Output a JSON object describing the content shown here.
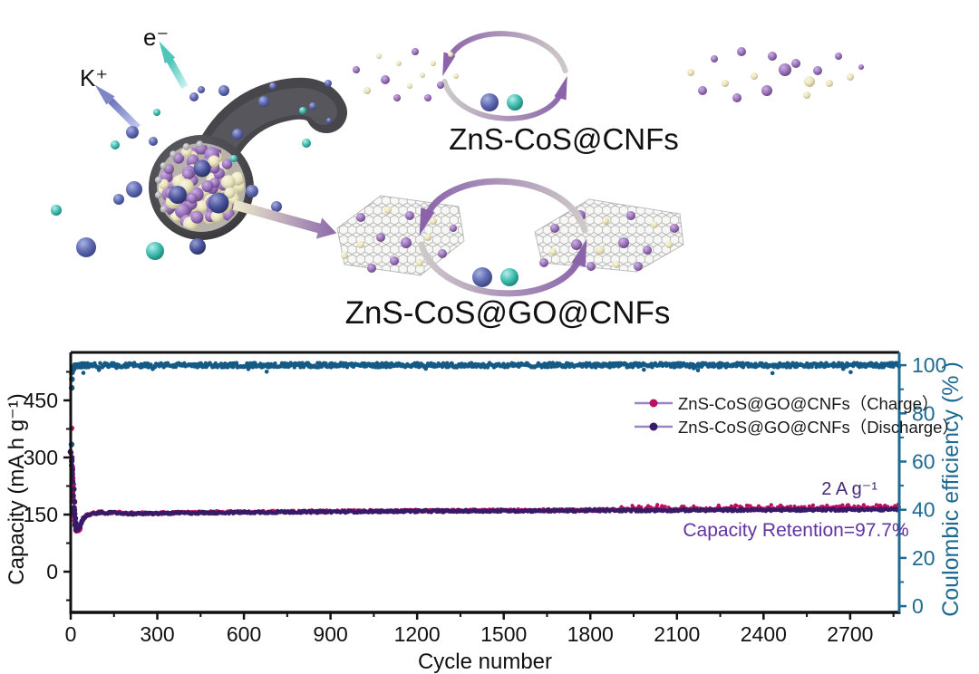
{
  "schematic": {
    "ion_label": "K⁺",
    "electron_label": "e⁻",
    "top_cycle_caption": "ZnS-CoS@CNFs",
    "bottom_cycle_caption": "ZnS-CoS@GO@CNFs"
  },
  "chart_data": {
    "type": "scatter",
    "title": "",
    "xlabel": "Cycle number",
    "ylabel_left": "Capacity (mA h g⁻¹)",
    "ylabel_right": "Coulombic efficiency (% )",
    "x_ticks": [
      0,
      300,
      600,
      900,
      1200,
      1500,
      1800,
      2100,
      2400,
      2700
    ],
    "y_ticks_left": [
      0,
      150,
      300,
      450
    ],
    "y_ticks_right": [
      0,
      20,
      40,
      60,
      80,
      100
    ],
    "xlim": [
      0,
      2870
    ],
    "ylim_left": [
      -107,
      576
    ],
    "ylim_right": [
      -2.6,
      105.3
    ],
    "grid": false,
    "legend_position": "upper right",
    "annotations": {
      "rate": "2 A g⁻¹",
      "retention": "Capacity Retention=97.7%"
    },
    "legend": [
      {
        "label": "ZnS-CoS@GO@CNFs（Charge）",
        "series": "charge"
      },
      {
        "label": "ZnS-CoS@GO@CNFs（Discharge）",
        "series": "discharge"
      }
    ],
    "series": [
      {
        "name": "charge",
        "axis": "left",
        "marker": "circle",
        "anchors_x": [
          1,
          2,
          3,
          4,
          6,
          8,
          10,
          12,
          15,
          18,
          22,
          28,
          35,
          45,
          60,
          100,
          160,
          220,
          300,
          500,
          800,
          1200,
          1600,
          2000,
          2400,
          2700,
          2870
        ],
        "anchors_y": [
          375,
          312,
          292,
          276,
          258,
          230,
          194,
          166,
          134,
          112,
          107,
          112,
          124,
          139,
          151,
          156,
          155,
          153,
          154,
          156,
          158,
          160,
          161,
          163,
          164,
          166,
          166
        ],
        "noise": 3.2,
        "late_extra": {
          "from": 1900,
          "amp": 26
        }
      },
      {
        "name": "discharge",
        "axis": "left",
        "marker": "circle",
        "anchors_x": [
          1,
          2,
          3,
          4,
          6,
          8,
          10,
          12,
          15,
          18,
          22,
          28,
          35,
          45,
          60,
          100,
          160,
          220,
          300,
          500,
          800,
          1200,
          1600,
          2000,
          2400,
          2700,
          2870
        ],
        "anchors_y": [
          315,
          300,
          288,
          278,
          262,
          235,
          198,
          170,
          138,
          116,
          110,
          115,
          126,
          141,
          150,
          155,
          154,
          152,
          153,
          155,
          157,
          159,
          160,
          161,
          162,
          163,
          163
        ],
        "noise": 3.2
      },
      {
        "name": "coulombic_efficiency",
        "axis": "right",
        "marker": "circle",
        "anchors_x": [
          1,
          2,
          3,
          5,
          8,
          12,
          20,
          40,
          100,
          500,
          1500,
          2870
        ],
        "anchors_y": [
          68,
          90,
          95,
          97.5,
          98.6,
          99.3,
          99.7,
          99.9,
          100,
          100,
          100,
          100
        ],
        "noise": 0.9
      }
    ]
  },
  "colors": {
    "charge": "#bd0f5f",
    "discharge": "#371b68",
    "coulombic": "#155a86",
    "right_axis": "#1e6a93",
    "legend_line": "#9c82c4",
    "rate_text": "#47297c",
    "retention_text": "#6233a0",
    "axis_black": "#111111"
  }
}
